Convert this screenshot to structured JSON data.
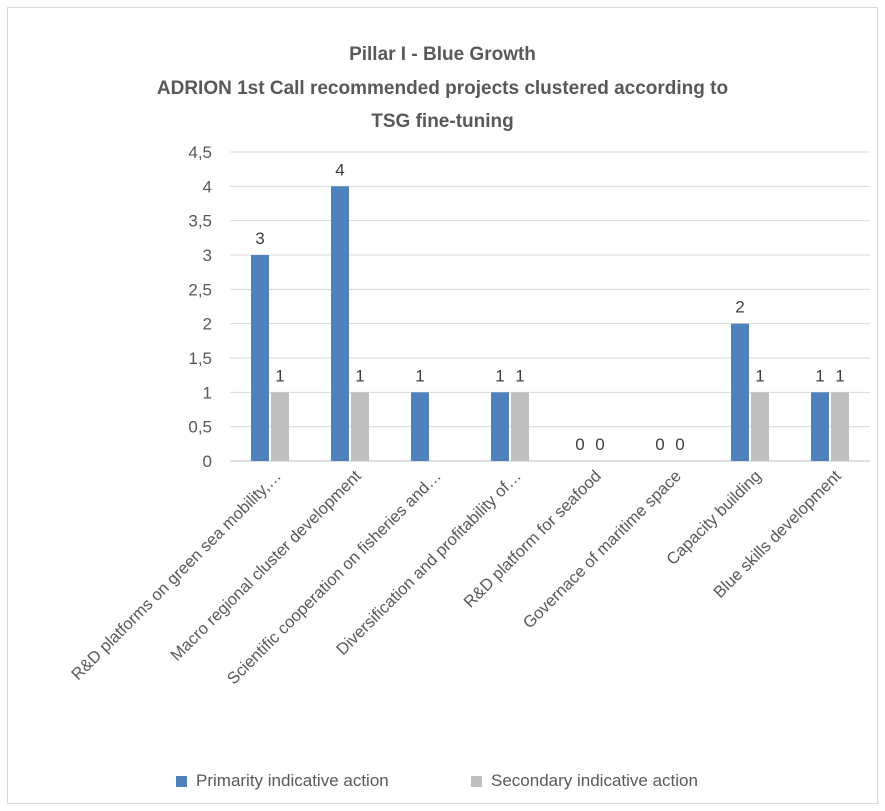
{
  "chart_data": {
    "type": "bar",
    "title_lines": [
      "Pillar I - Blue Growth",
      "ADRION 1st Call recommended projects clustered according to",
      "TSG fine-tuning"
    ],
    "categories": [
      "R&D platforms on green sea mobility,…",
      "Macro regional cluster development",
      "Scientific cooperation on fisheries and…",
      "Diversification and profitability of…",
      "R&D platform for seafood",
      "Governace of maritime space",
      "Capacity building",
      "Blue skills development"
    ],
    "series": [
      {
        "name": "Primarity indicative action",
        "color": "#4f81bd",
        "values": [
          3,
          4,
          1,
          1,
          0,
          0,
          2,
          1
        ],
        "labels": [
          "3",
          "4",
          "1",
          "1",
          "0",
          "0",
          "2",
          "1"
        ]
      },
      {
        "name": "Secondary indicative action",
        "color": "#bfbfbf",
        "values": [
          1,
          1,
          0,
          1,
          0,
          0,
          1,
          1
        ],
        "labels": [
          "1",
          "1",
          "",
          "1",
          "0",
          "0",
          "1",
          "1"
        ]
      }
    ],
    "ylim": [
      0,
      4.5
    ],
    "yticks": [
      "0",
      "0,5",
      "1",
      "1,5",
      "2",
      "2,5",
      "3",
      "3,5",
      "4",
      "4,5"
    ],
    "grid": true,
    "legend_position": "bottom"
  }
}
